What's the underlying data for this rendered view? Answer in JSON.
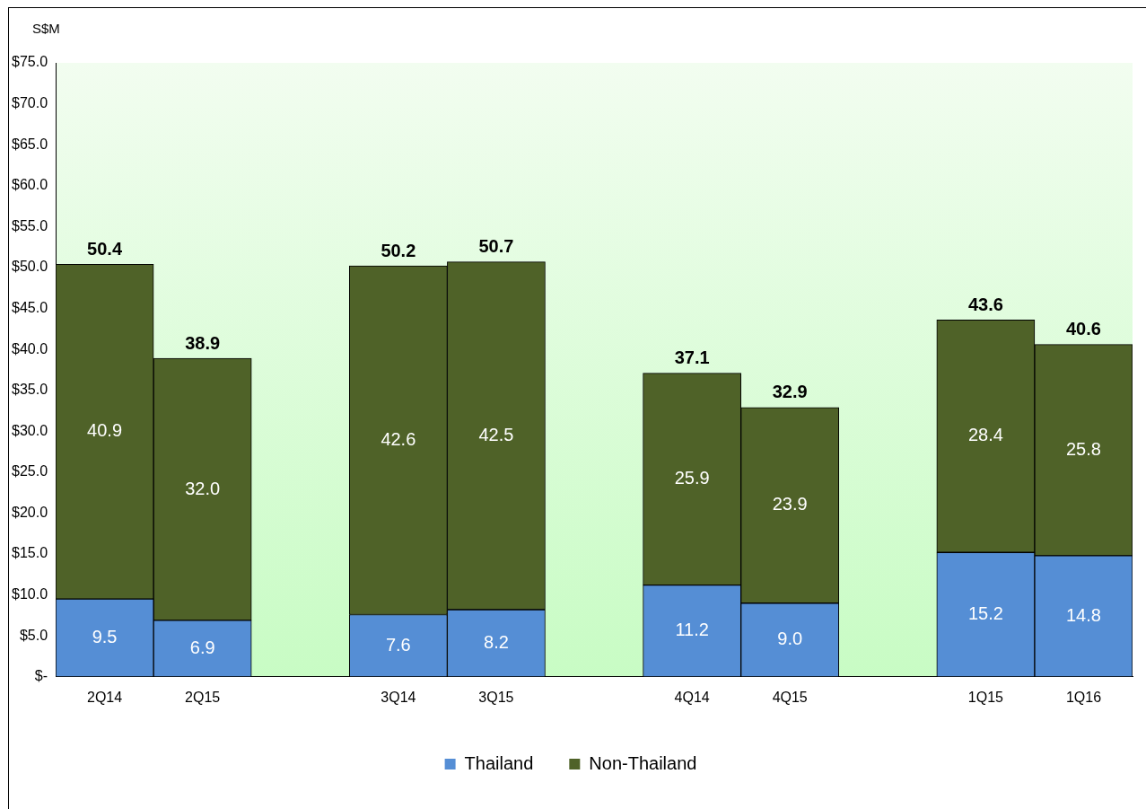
{
  "chart_data": {
    "type": "bar",
    "stacked": true,
    "ylabel": "S$M",
    "categories": [
      "2Q14",
      "2Q15",
      null,
      "3Q14",
      "3Q15",
      null,
      "4Q14",
      "4Q15",
      null,
      "1Q15",
      "1Q16"
    ],
    "series": [
      {
        "name": "Thailand",
        "color": "#558ed5",
        "values": [
          9.5,
          6.9,
          null,
          7.6,
          8.2,
          null,
          11.2,
          9.0,
          null,
          15.2,
          14.8
        ],
        "value_labels": [
          "9.5",
          "6.9",
          null,
          "7.6",
          "8.2",
          null,
          "11.2",
          "9.0",
          null,
          "15.2",
          "14.8"
        ]
      },
      {
        "name": "Non-Thailand",
        "color": "#4f6228",
        "values": [
          40.9,
          32.0,
          null,
          42.6,
          42.5,
          null,
          25.9,
          23.9,
          null,
          28.4,
          25.8
        ],
        "value_labels": [
          "40.9",
          "32.0",
          null,
          "42.6",
          "42.5",
          null,
          "25.9",
          "23.9",
          null,
          "28.4",
          "25.8"
        ]
      }
    ],
    "totals": [
      "50.4",
      "38.9",
      null,
      "50.2",
      "50.7",
      null,
      "37.1",
      "32.9",
      null,
      "43.6",
      "40.6"
    ],
    "ylim": [
      0,
      75
    ],
    "yticks": [
      {
        "value": 0,
        "label": "$-"
      },
      {
        "value": 5,
        "label": "$5.0"
      },
      {
        "value": 10,
        "label": "$10.0"
      },
      {
        "value": 15,
        "label": "$15.0"
      },
      {
        "value": 20,
        "label": "$20.0"
      },
      {
        "value": 25,
        "label": "$25.0"
      },
      {
        "value": 30,
        "label": "$30.0"
      },
      {
        "value": 35,
        "label": "$35.0"
      },
      {
        "value": 40,
        "label": "$40.0"
      },
      {
        "value": 45,
        "label": "$45.0"
      },
      {
        "value": 50,
        "label": "$50.0"
      },
      {
        "value": 55,
        "label": "$55.0"
      },
      {
        "value": 60,
        "label": "$60.0"
      },
      {
        "value": 65,
        "label": "$65.0"
      },
      {
        "value": 70,
        "label": "$70.0"
      },
      {
        "value": 75,
        "label": "$75.0"
      }
    ],
    "grid": false,
    "legend": "bottom"
  }
}
